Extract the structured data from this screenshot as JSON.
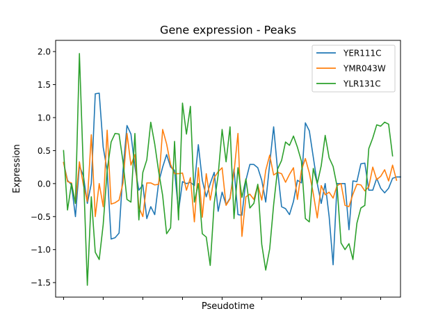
{
  "chart_data": {
    "type": "line",
    "title": "Gene expression - Peaks",
    "xlabel": "Pseudotime",
    "ylabel": "Expression",
    "xlim": [
      -2,
      85
    ],
    "ylim": [
      -1.72,
      2.17
    ],
    "yticks": [
      -1.5,
      -1.0,
      -0.5,
      0.0,
      0.5,
      1.0,
      1.5,
      2.0
    ],
    "ytick_labels": [
      "−1.5",
      "−1.0",
      "−0.5",
      "0.0",
      "0.5",
      "1.0",
      "1.5",
      "2.0"
    ],
    "xticks": [
      0,
      10,
      20,
      30,
      40,
      50,
      60,
      70,
      80
    ],
    "legend_position": "top-right",
    "grid": false,
    "series": [
      {
        "name": "YER111C",
        "color": "#1f77b4",
        "values": [
          0.32,
          0.05,
          -0.02,
          -0.5,
          0.27,
          0.12,
          -0.3,
          0.0,
          1.36,
          1.37,
          0.55,
          0.2,
          -0.84,
          -0.82,
          -0.75,
          0.2,
          0.88,
          0.75,
          0.25,
          -0.1,
          -0.02,
          -0.53,
          -0.35,
          -0.47,
          0.02,
          0.25,
          0.44,
          0.25,
          0.2,
          -0.42,
          0.03,
          0.0,
          0.02,
          -0.03,
          0.59,
          0.05,
          -0.2,
          0.0,
          0.17,
          -0.42,
          -0.13,
          -0.32,
          -0.22,
          0.22,
          -0.47,
          -0.48,
          0.05,
          0.29,
          0.29,
          0.24,
          0.05,
          -0.28,
          0.3,
          0.86,
          0.2,
          -0.35,
          -0.38,
          -0.47,
          -0.27,
          0.05,
          0.01,
          0.92,
          0.8,
          0.4,
          0.0,
          -0.3,
          0.0,
          -0.5,
          -1.23,
          0.0,
          0.0,
          0.0,
          -0.7,
          0.04,
          0.03,
          0.3,
          0.31,
          -0.1,
          -0.1,
          0.08,
          -0.07,
          -0.14,
          -0.07,
          0.08,
          0.1,
          0.1
        ]
      },
      {
        "name": "YMR043W",
        "color": "#ff7f0e",
        "values": [
          0.32,
          0.03,
          0.01,
          -0.3,
          0.33,
          -0.02,
          -0.27,
          0.74,
          -0.5,
          0.0,
          -0.35,
          0.81,
          -0.31,
          -0.29,
          -0.25,
          0.01,
          0.76,
          0.28,
          0.44,
          -0.36,
          -0.5,
          0.01,
          0.01,
          -0.02,
          -0.01,
          0.82,
          0.6,
          0.29,
          0.15,
          0.15,
          0.16,
          -0.1,
          0.09,
          -0.58,
          0.24,
          -0.51,
          0.15,
          -0.25,
          0.09,
          0.18,
          0.24,
          -0.33,
          -0.23,
          0.17,
          0.76,
          -0.8,
          -0.2,
          -0.16,
          -0.24,
          -0.02,
          -0.25,
          0.2,
          0.43,
          0.13,
          0.17,
          0.15,
          0.02,
          0.14,
          0.24,
          -0.24,
          0.2,
          0.38,
          0.16,
          -0.15,
          -0.52,
          -0.03,
          -0.17,
          -0.13,
          -0.22,
          -0.03,
          0.0,
          -0.33,
          -0.35,
          -0.16,
          -0.01,
          -0.02,
          -0.11,
          -0.05,
          0.25,
          0.06,
          0.11,
          0.21,
          0.04,
          0.28,
          0.05
        ]
      },
      {
        "name": "YLR131C",
        "color": "#2ca02c",
        "values": [
          0.5,
          -0.4,
          0.0,
          -0.3,
          1.97,
          0.2,
          -1.54,
          -0.2,
          -1.04,
          -1.15,
          -0.62,
          0.2,
          0.63,
          0.76,
          0.75,
          0.33,
          -0.24,
          -0.28,
          0.76,
          -0.55,
          0.17,
          0.36,
          0.93,
          0.6,
          0.18,
          -0.18,
          -0.76,
          -0.67,
          0.64,
          -0.55,
          1.22,
          0.75,
          1.17,
          -0.28,
          0.0,
          -0.76,
          -0.81,
          -1.24,
          -0.3,
          0.13,
          0.82,
          0.33,
          0.86,
          -0.53,
          0.24,
          -0.21,
          0.07,
          -0.37,
          -0.3,
          -0.01,
          -0.92,
          -1.31,
          -0.99,
          -0.32,
          0.22,
          0.35,
          0.63,
          0.58,
          0.72,
          0.55,
          0.34,
          -0.53,
          -0.58,
          0.23,
          0.0,
          0.27,
          0.73,
          0.39,
          0.26,
          -0.04,
          -0.9,
          -1.0,
          -0.91,
          -1.15,
          -0.6,
          -0.37,
          -0.33,
          0.53,
          0.69,
          0.89,
          0.87,
          0.93,
          0.9,
          0.42
        ]
      }
    ]
  }
}
